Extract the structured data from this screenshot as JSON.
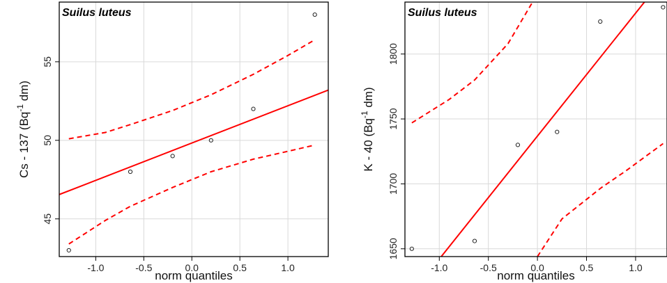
{
  "chart_data": [
    {
      "type": "scatter",
      "title": "Suilus luteus",
      "xlabel": "norm quantiles",
      "ylabel_main": "Cs - 137 (Bq",
      "ylabel_sup": "-1",
      "ylabel_tail": " dm)",
      "xlim": [
        -1.38,
        1.42
      ],
      "ylim": [
        42.6,
        58.8
      ],
      "xticks": [
        -1.0,
        -0.5,
        0.0,
        0.5,
        1.0
      ],
      "xtick_labels": [
        "-1.0",
        "-0.5",
        "0.0",
        "0.5",
        "1.0"
      ],
      "yticks": [
        45,
        50,
        55
      ],
      "ytick_labels": [
        "45",
        "50",
        "55"
      ],
      "grid": true,
      "points": [
        {
          "x": -1.28,
          "y": 43
        },
        {
          "x": -0.64,
          "y": 48
        },
        {
          "x": -0.2,
          "y": 49
        },
        {
          "x": 0.2,
          "y": 50
        },
        {
          "x": 0.64,
          "y": 52
        },
        {
          "x": 1.28,
          "y": 58
        }
      ],
      "fit_line": {
        "x": [
          -1.38,
          1.42
        ],
        "y": [
          46.55,
          53.2
        ]
      },
      "upper_band": {
        "x": [
          -1.28,
          -0.9,
          -0.64,
          -0.2,
          0.2,
          0.64,
          1.0,
          1.28
        ],
        "y": [
          50.1,
          50.5,
          51.0,
          51.9,
          52.9,
          54.2,
          55.4,
          56.4
        ]
      },
      "lower_band": {
        "x": [
          -1.28,
          -0.9,
          -0.64,
          -0.2,
          0.2,
          0.64,
          1.0,
          1.28
        ],
        "y": [
          43.4,
          44.9,
          45.8,
          47.0,
          48.0,
          48.8,
          49.3,
          49.7
        ]
      },
      "colors": {
        "fit": "#ff0000",
        "band": "#ff0000",
        "points": "#222222",
        "grid": "#d9d9d9"
      }
    },
    {
      "type": "scatter",
      "title": "Suilus luteus",
      "xlabel": "norm quantiles",
      "ylabel_main": "K - 40 (Bq",
      "ylabel_sup": "-1",
      "ylabel_tail": " dm)",
      "xlim": [
        -1.35,
        1.32
      ],
      "ylim": [
        1644,
        1840
      ],
      "xticks": [
        -1.0,
        -0.5,
        0.0,
        0.5,
        1.0
      ],
      "xtick_labels": [
        "-1.0",
        "-0.5",
        "0.0",
        "0.5",
        "1.0"
      ],
      "yticks": [
        1650,
        1700,
        1750,
        1800
      ],
      "ytick_labels": [
        "1650",
        "1700",
        "1750",
        "1800"
      ],
      "grid": true,
      "points": [
        {
          "x": -1.28,
          "y": 1650
        },
        {
          "x": -0.64,
          "y": 1656
        },
        {
          "x": -0.2,
          "y": 1730
        },
        {
          "x": 0.2,
          "y": 1740
        },
        {
          "x": 0.64,
          "y": 1825
        },
        {
          "x": 1.28,
          "y": 1836
        }
      ],
      "fit_line": {
        "x": [
          -0.98,
          1.09
        ],
        "y": [
          1644,
          1840
        ]
      },
      "upper_band": {
        "x": [
          -1.28,
          -0.9,
          -0.64,
          -0.3,
          -0.05
        ],
        "y": [
          1747,
          1765,
          1780,
          1808,
          1840
        ]
      },
      "lower_band": {
        "x": [
          0.0,
          0.25,
          0.65,
          0.9,
          1.28
        ],
        "y": [
          1644,
          1673,
          1697,
          1710,
          1731
        ]
      },
      "colors": {
        "fit": "#ff0000",
        "band": "#ff0000",
        "points": "#222222",
        "grid": "#d9d9d9"
      }
    }
  ]
}
